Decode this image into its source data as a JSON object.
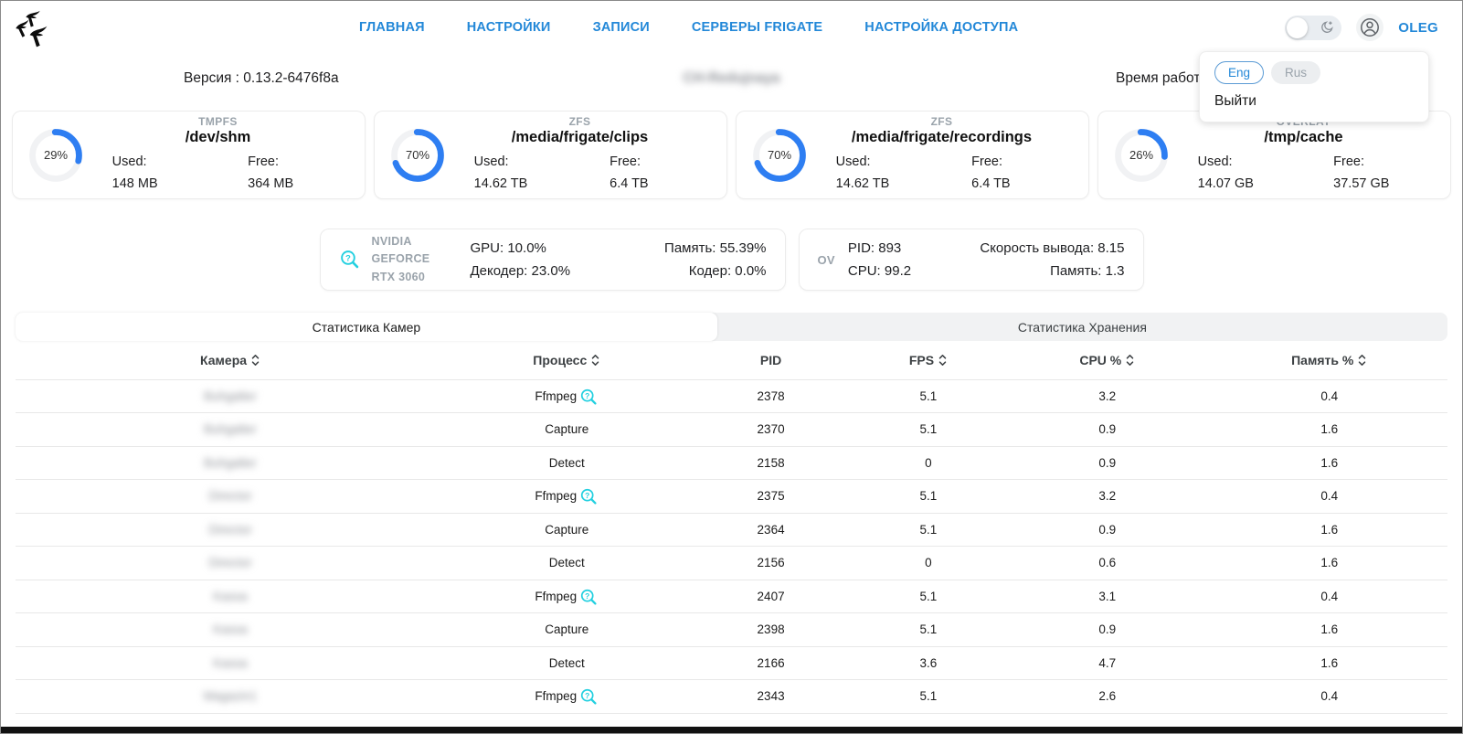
{
  "header": {
    "nav_items": [
      {
        "label": "ГЛАВНАЯ"
      },
      {
        "label": "НАСТРОЙКИ"
      },
      {
        "label": "ЗАПИСИ"
      },
      {
        "label": "СЕРВЕРЫ FRIGATE"
      },
      {
        "label": "НАСТРОЙКА ДОСТУПА"
      }
    ],
    "username": "OLEG",
    "theme_toggle_state": "off"
  },
  "user_menu": {
    "lang_eng": "Eng",
    "lang_rus": "Rus",
    "active_language": "Eng",
    "logout_label": "Выйти"
  },
  "info_bar": {
    "version": "Версия : 0.13.2-6476f8a",
    "hostname_blurred": "CH-Redujnaya",
    "uptime_label_visible": "Время работ"
  },
  "colors": {
    "accent_blue": "#2388d8",
    "donut_blue": "#2e7ef2",
    "debug_cyan": "#24d0e0"
  },
  "storage_cards": [
    {
      "fs": "TMPFS",
      "mount": "/dev/shm",
      "percent": 29,
      "percent_label": "29%",
      "used_label": "Used:",
      "used": "148 MB",
      "free_label": "Free:",
      "free": "364 MB"
    },
    {
      "fs": "ZFS",
      "mount": "/media/frigate/clips",
      "percent": 70,
      "percent_label": "70%",
      "used_label": "Used:",
      "used": "14.62 TB",
      "free_label": "Free:",
      "free": "6.4 TB"
    },
    {
      "fs": "ZFS",
      "mount": "/media/frigate/recordings",
      "percent": 70,
      "percent_label": "70%",
      "used_label": "Used:",
      "used": "14.62 TB",
      "free_label": "Free:",
      "free": "6.4 TB"
    },
    {
      "fs": "OVERLAY",
      "mount": "/tmp/cache",
      "percent": 26,
      "percent_label": "26%",
      "used_label": "Used:",
      "used": "14.07 GB",
      "free_label": "Free:",
      "free": "37.57 GB"
    }
  ],
  "gpu_card": {
    "name_line1": "NVIDIA GEFORCE",
    "name_line2": "RTX 3060",
    "stat_gpu": "GPU: 10.0%",
    "stat_decoder": "Декодер: 23.0%",
    "stat_memory": "Память: 55.39%",
    "stat_encoder": "Кодер: 0.0%"
  },
  "ov_card": {
    "name": "OV",
    "stat_pid": "PID: 893",
    "stat_cpu": "CPU: 99.2",
    "stat_output_speed": "Скорость вывода: 8.15",
    "stat_memory": "Память: 1.3"
  },
  "tabs": {
    "camera_stats": "Статистика Камер",
    "storage_stats": "Статистика Хранения",
    "active": "camera_stats"
  },
  "table": {
    "columns": [
      {
        "label": "Камера",
        "sortable": true
      },
      {
        "label": "Процесс",
        "sortable": true
      },
      {
        "label": "PID",
        "sortable": false
      },
      {
        "label": "FPS",
        "sortable": true
      },
      {
        "label": "CPU %",
        "sortable": true
      },
      {
        "label": "Память %",
        "sortable": true
      }
    ],
    "rows": [
      {
        "camera": "Buhgalter",
        "camera_blurred": true,
        "process": "Ffmpeg",
        "pid": "2378",
        "fps": "5.1",
        "cpu": "3.2",
        "mem": "0.4"
      },
      {
        "camera": "Buhgalter",
        "camera_blurred": true,
        "process": "Capture",
        "pid": "2370",
        "fps": "5.1",
        "cpu": "0.9",
        "mem": "1.6"
      },
      {
        "camera": "Buhgalter",
        "camera_blurred": true,
        "process": "Detect",
        "pid": "2158",
        "fps": "0",
        "cpu": "0.9",
        "mem": "1.6"
      },
      {
        "camera": "Director",
        "camera_blurred": true,
        "process": "Ffmpeg",
        "pid": "2375",
        "fps": "5.1",
        "cpu": "3.2",
        "mem": "0.4"
      },
      {
        "camera": "Director",
        "camera_blurred": true,
        "process": "Capture",
        "pid": "2364",
        "fps": "5.1",
        "cpu": "0.9",
        "mem": "1.6"
      },
      {
        "camera": "Director",
        "camera_blurred": true,
        "process": "Detect",
        "pid": "2156",
        "fps": "0",
        "cpu": "0.6",
        "mem": "1.6"
      },
      {
        "camera": "Kassa",
        "camera_blurred": true,
        "process": "Ffmpeg",
        "pid": "2407",
        "fps": "5.1",
        "cpu": "3.1",
        "mem": "0.4"
      },
      {
        "camera": "Kassa",
        "camera_blurred": true,
        "process": "Capture",
        "pid": "2398",
        "fps": "5.1",
        "cpu": "0.9",
        "mem": "1.6"
      },
      {
        "camera": "Kassa",
        "camera_blurred": true,
        "process": "Detect",
        "pid": "2166",
        "fps": "3.6",
        "cpu": "4.7",
        "mem": "1.6"
      },
      {
        "camera": "Magazin1",
        "camera_blurred": true,
        "process": "Ffmpeg",
        "pid": "2343",
        "fps": "5.1",
        "cpu": "2.6",
        "mem": "0.4"
      }
    ]
  }
}
